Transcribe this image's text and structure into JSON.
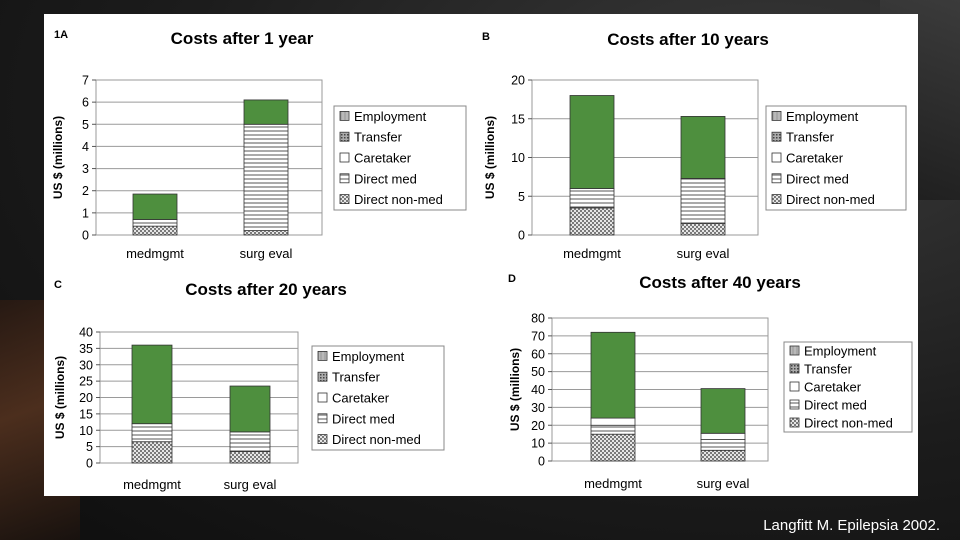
{
  "citation": "Langfitt M. Epilepsia 2002.",
  "colors": {
    "green": "#4e8f3e",
    "direct_non_med": "#9a9a9a",
    "direct_med": "#ffffff",
    "caretaker": "#ffffff",
    "transfer": "#6a6a6a",
    "employment": "#bfbfbf"
  },
  "legend_labels": [
    "Employment",
    "Transfer",
    "Caretaker",
    "Direct med",
    "Direct non-med"
  ],
  "chart_data": [
    {
      "panel_label": "1A",
      "type": "bar",
      "stacked": true,
      "title": "Costs after 1 year",
      "ylabel": "US $ (millions)",
      "ylim": [
        0,
        7
      ],
      "yticks": [
        0,
        1,
        2,
        3,
        4,
        5,
        6,
        7
      ],
      "categories": [
        "medmgmt",
        "surg eval"
      ],
      "series": [
        {
          "name": "Direct non-med",
          "values": [
            0.4,
            0.2
          ]
        },
        {
          "name": "Direct med",
          "values": [
            0.3,
            4.8
          ]
        },
        {
          "name": "Caretaker",
          "values": [
            0.0,
            0.0
          ]
        },
        {
          "name": "Transfer",
          "values": [
            0.0,
            0.0
          ]
        },
        {
          "name": "Employment",
          "values": [
            1.15,
            1.1
          ]
        }
      ]
    },
    {
      "panel_label": "B",
      "type": "bar",
      "stacked": true,
      "title": "Costs after 10 years",
      "ylabel": "US $ (millions)",
      "ylim": [
        0,
        20
      ],
      "yticks": [
        0,
        5,
        10,
        15,
        20
      ],
      "categories": [
        "medmgmt",
        "surg eval"
      ],
      "series": [
        {
          "name": "Direct non-med",
          "values": [
            3.5,
            1.5
          ]
        },
        {
          "name": "Direct med",
          "values": [
            2.5,
            5.8
          ]
        },
        {
          "name": "Caretaker",
          "values": [
            0.0,
            0.0
          ]
        },
        {
          "name": "Transfer",
          "values": [
            0.0,
            0.0
          ]
        },
        {
          "name": "Employment",
          "values": [
            12.0,
            8.0
          ]
        }
      ]
    },
    {
      "panel_label": "C",
      "type": "bar",
      "stacked": true,
      "title": "Costs after 20 years",
      "ylabel": "US $ (millions)",
      "ylim": [
        0,
        40
      ],
      "yticks": [
        0,
        5,
        10,
        15,
        20,
        25,
        30,
        35,
        40
      ],
      "categories": [
        "medmgmt",
        "surg eval"
      ],
      "series": [
        {
          "name": "Direct non-med",
          "values": [
            6.5,
            3.5
          ]
        },
        {
          "name": "Direct med",
          "values": [
            5.5,
            6.0
          ]
        },
        {
          "name": "Caretaker",
          "values": [
            0.0,
            0.0
          ]
        },
        {
          "name": "Transfer",
          "values": [
            0.0,
            0.0
          ]
        },
        {
          "name": "Employment",
          "values": [
            24.0,
            14.0
          ]
        }
      ]
    },
    {
      "panel_label": "D",
      "type": "bar",
      "stacked": true,
      "title": "Costs after 40 years",
      "ylabel": "US $ (millions)",
      "ylim": [
        0,
        80
      ],
      "yticks": [
        0,
        10,
        20,
        30,
        40,
        50,
        60,
        70,
        80
      ],
      "categories": [
        "medmgmt",
        "surg eval"
      ],
      "series": [
        {
          "name": "Direct non-med",
          "values": [
            15.0,
            6.0
          ]
        },
        {
          "name": "Direct med",
          "values": [
            5.0,
            6.0
          ]
        },
        {
          "name": "Caretaker",
          "values": [
            4.0,
            3.5
          ]
        },
        {
          "name": "Transfer",
          "values": [
            0.0,
            0.0
          ]
        },
        {
          "name": "Employment",
          "values": [
            48.0,
            25.0
          ]
        }
      ]
    }
  ]
}
